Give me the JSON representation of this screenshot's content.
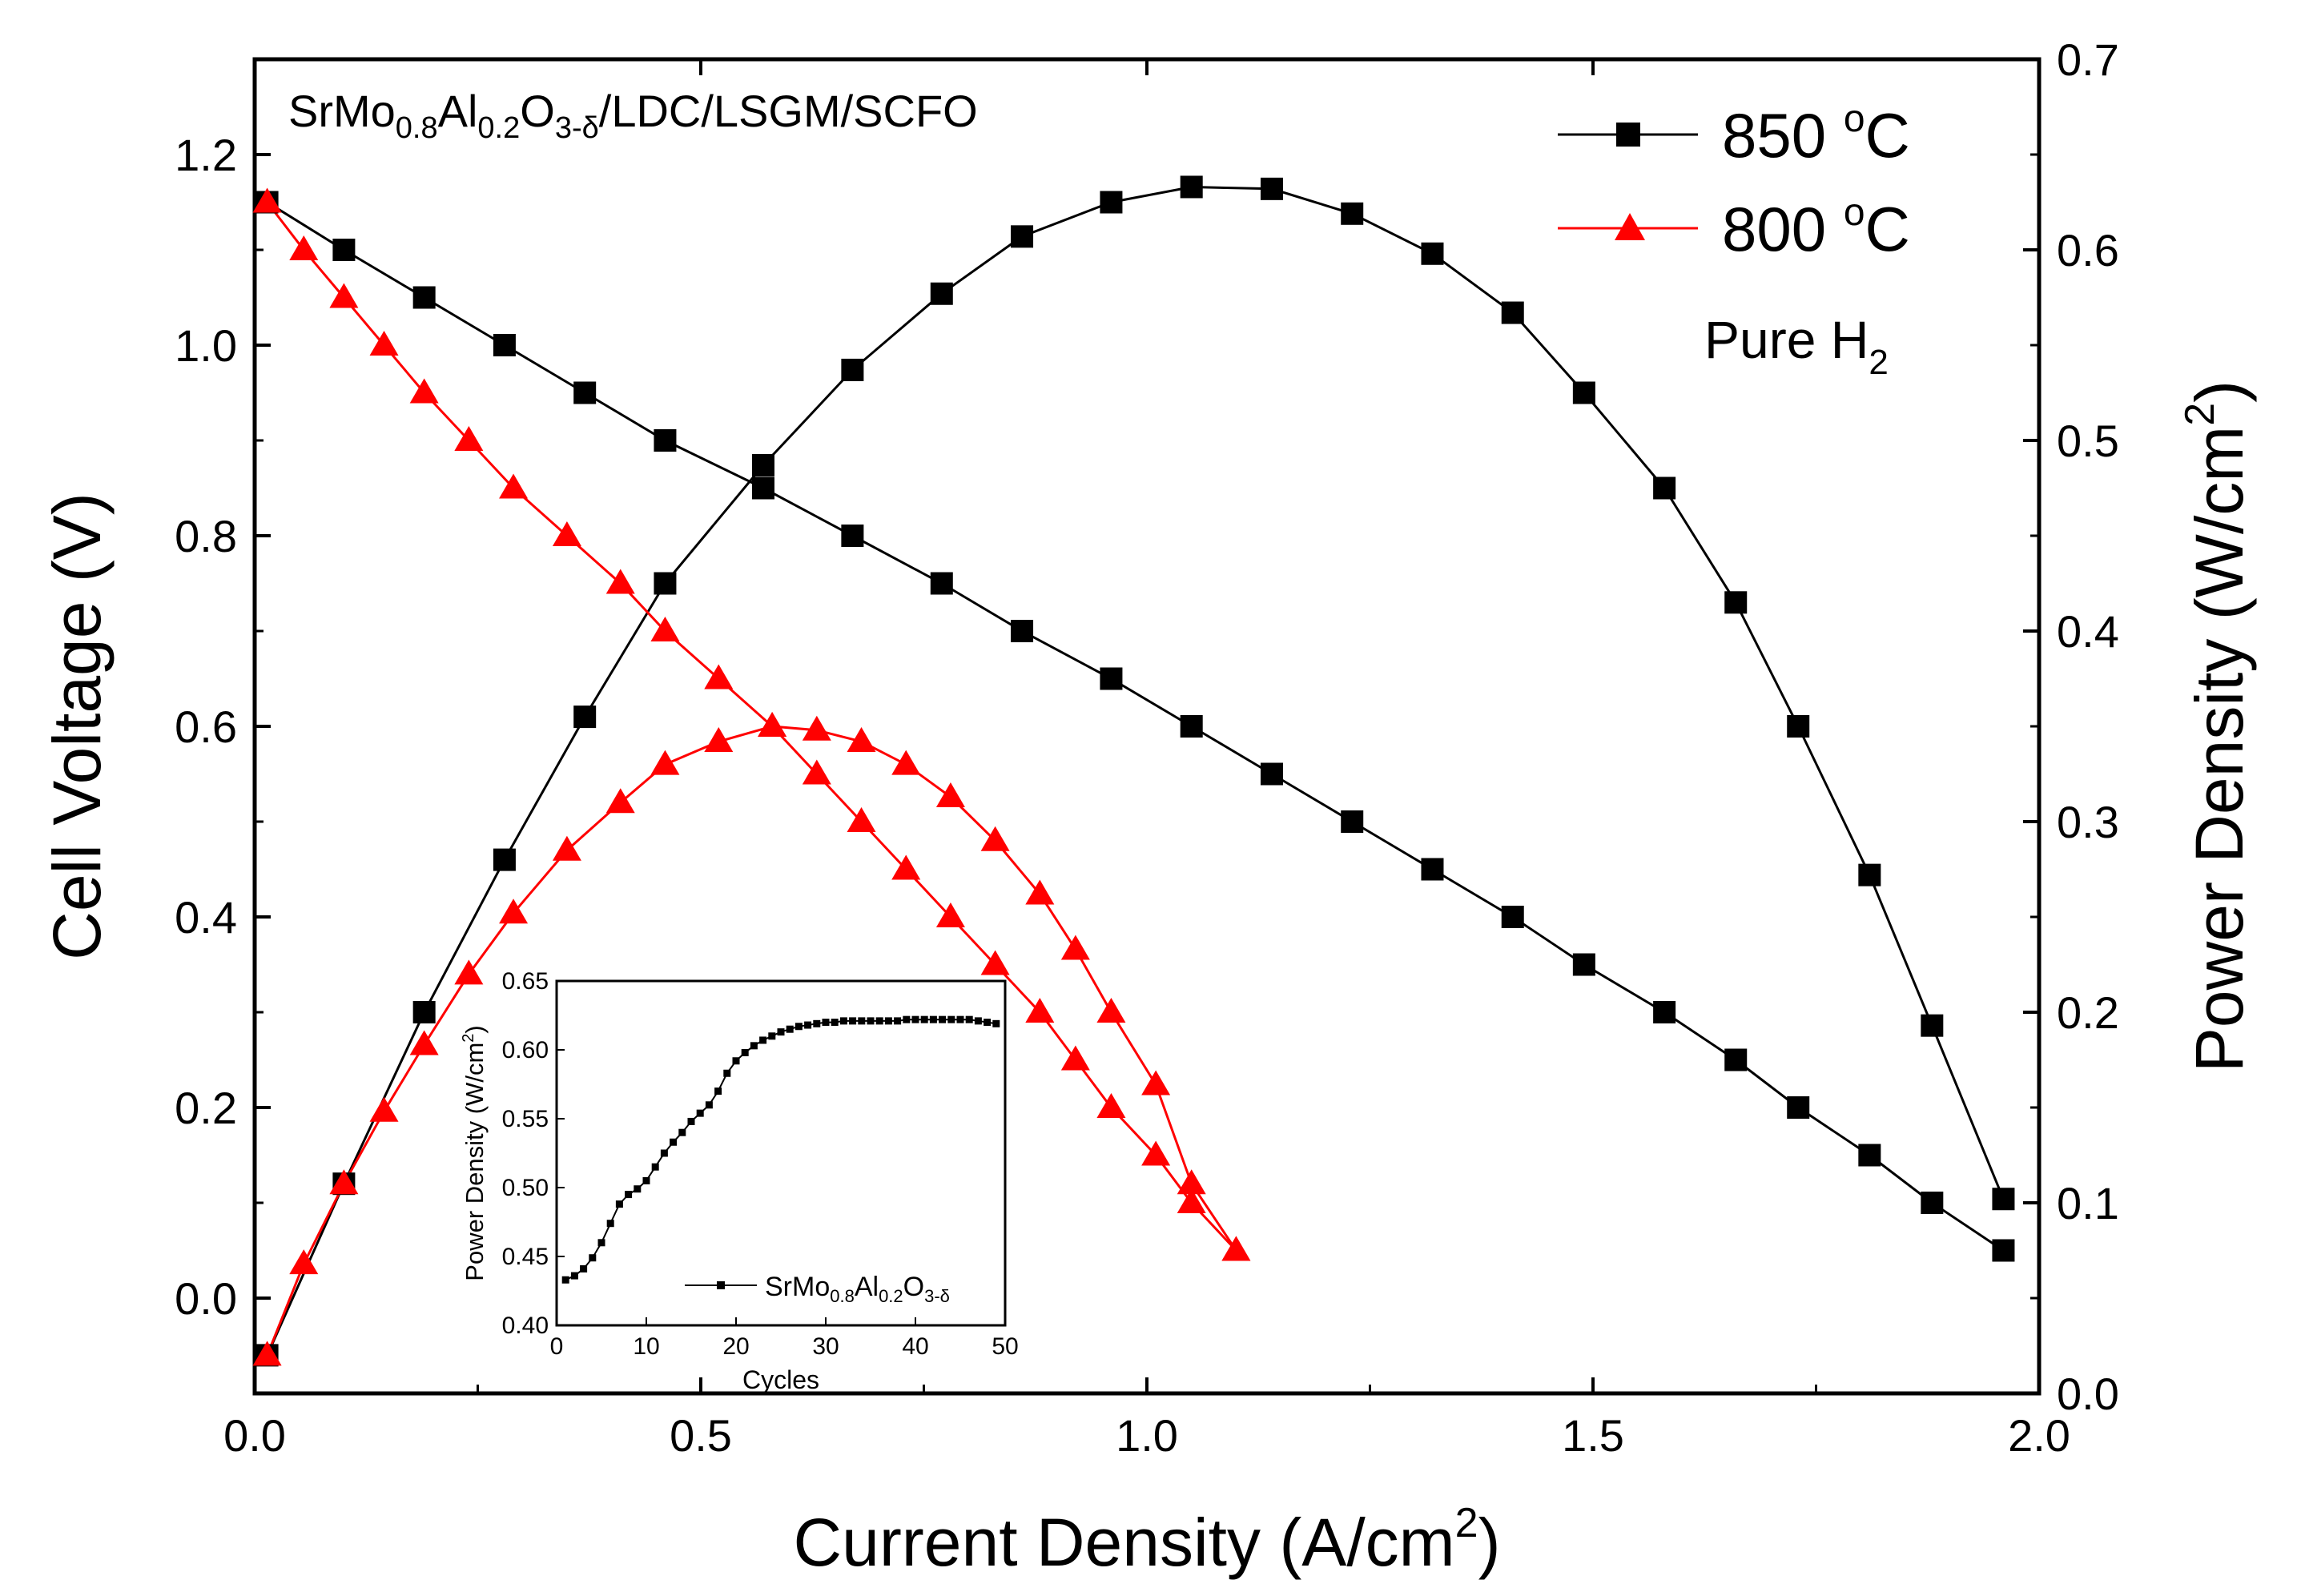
{
  "colors": {
    "series_850": "#000000",
    "series_800": "#ff0000",
    "marker_800": "#ff0000",
    "axis": "#000000"
  },
  "annotations": {
    "title_parts": [
      "SrMo",
      "0.8",
      "Al",
      "0.2",
      "O",
      "3-δ",
      "/LDC/LSGM/SCFO"
    ],
    "fuel_parts": [
      "Pure H",
      "2"
    ]
  },
  "legend": [
    {
      "base": "850 ",
      "sup": "o",
      "tail": "C",
      "marker": "square",
      "color": "#000000"
    },
    {
      "base": "800 ",
      "sup": "o",
      "tail": "C",
      "marker": "triangle",
      "color": "#ff0000"
    }
  ],
  "chart_data": [
    {
      "type": "line",
      "xlabel_parts": [
        "Current Density (A/cm",
        "2",
        ")"
      ],
      "ylabel": "Cell Voltage (V)",
      "y2label_parts": [
        "Power Density (W/cm",
        "2",
        ")"
      ],
      "xlim": [
        0.0,
        2.0
      ],
      "ylim": [
        -0.1,
        1.3
      ],
      "y2lim": [
        0.0,
        0.7
      ],
      "xticks": [
        "0.0",
        "0.5",
        "1.0",
        "1.5",
        "2.0"
      ],
      "yticks": [
        "0.0",
        "0.2",
        "0.4",
        "0.6",
        "0.8",
        "1.0",
        "1.2"
      ],
      "y2ticks": [
        "0.0",
        "0.1",
        "0.2",
        "0.3",
        "0.4",
        "0.5",
        "0.6",
        "0.7"
      ],
      "series": [
        {
          "name": "850 °C voltage",
          "axis": "left",
          "marker": "square",
          "color": "#000000",
          "x": [
            0.014,
            0.1,
            0.19,
            0.28,
            0.37,
            0.46,
            0.57,
            0.67,
            0.77,
            0.86,
            0.96,
            1.05,
            1.14,
            1.23,
            1.32,
            1.41,
            1.49,
            1.58,
            1.66,
            1.73,
            1.81,
            1.88,
            1.96
          ],
          "y": [
            1.15,
            1.1,
            1.05,
            1.0,
            0.95,
            0.9,
            0.85,
            0.8,
            0.75,
            0.7,
            0.65,
            0.6,
            0.55,
            0.5,
            0.45,
            0.4,
            0.35,
            0.3,
            0.25,
            0.2,
            0.15,
            0.1,
            0.05
          ]
        },
        {
          "name": "850 °C power",
          "axis": "right",
          "marker": "square",
          "color": "#000000",
          "x": [
            0.014,
            0.1,
            0.19,
            0.28,
            0.37,
            0.46,
            0.57,
            0.67,
            0.77,
            0.86,
            0.96,
            1.05,
            1.14,
            1.23,
            1.32,
            1.41,
            1.49,
            1.58,
            1.66,
            1.73,
            1.81,
            1.88,
            1.96
          ],
          "y": [
            0.02,
            0.11,
            0.2,
            0.28,
            0.355,
            0.425,
            0.487,
            0.537,
            0.577,
            0.607,
            0.625,
            0.633,
            0.632,
            0.619,
            0.598,
            0.567,
            0.525,
            0.475,
            0.415,
            0.35,
            0.272,
            0.193,
            0.102
          ]
        },
        {
          "name": "800 °C voltage",
          "axis": "left",
          "marker": "triangle",
          "color": "#ff0000",
          "x": [
            0.014,
            0.055,
            0.1,
            0.145,
            0.19,
            0.24,
            0.29,
            0.35,
            0.41,
            0.46,
            0.52,
            0.58,
            0.63,
            0.68,
            0.73,
            0.78,
            0.83,
            0.88,
            0.92,
            0.96,
            1.01,
            1.05,
            1.1
          ],
          "y": [
            1.15,
            1.1,
            1.05,
            1.0,
            0.95,
            0.9,
            0.85,
            0.8,
            0.75,
            0.7,
            0.65,
            0.6,
            0.55,
            0.5,
            0.45,
            0.4,
            0.35,
            0.3,
            0.25,
            0.2,
            0.15,
            0.1,
            0.05
          ]
        },
        {
          "name": "800 °C power",
          "axis": "right",
          "marker": "triangle",
          "color": "#ff0000",
          "x": [
            0.014,
            0.055,
            0.1,
            0.145,
            0.19,
            0.24,
            0.29,
            0.35,
            0.41,
            0.46,
            0.52,
            0.58,
            0.63,
            0.68,
            0.73,
            0.78,
            0.83,
            0.88,
            0.92,
            0.96,
            1.01,
            1.05,
            1.1
          ],
          "y": [
            0.02,
            0.068,
            0.11,
            0.148,
            0.183,
            0.22,
            0.252,
            0.285,
            0.31,
            0.33,
            0.342,
            0.35,
            0.348,
            0.342,
            0.33,
            0.313,
            0.29,
            0.262,
            0.233,
            0.2,
            0.162,
            0.11,
            0.075
          ]
        }
      ]
    },
    {
      "type": "line",
      "name": "inset",
      "xlabel": "Cycles",
      "ylabel_parts": [
        "Power Density (W/cm",
        "2",
        ")"
      ],
      "xlim": [
        0,
        50
      ],
      "ylim": [
        0.4,
        0.65
      ],
      "xticks": [
        "0",
        "10",
        "20",
        "30",
        "40",
        "50"
      ],
      "yticks": [
        "0.40",
        "0.45",
        "0.50",
        "0.55",
        "0.60",
        "0.65"
      ],
      "legend_parts": [
        "SrMo",
        "0.8",
        "Al",
        "0.2",
        "O",
        "3-δ"
      ],
      "series": [
        {
          "name": "SrMo0.8Al0.2O3-δ",
          "x": [
            1,
            2,
            3,
            4,
            5,
            6,
            7,
            8,
            9,
            10,
            11,
            12,
            13,
            14,
            15,
            16,
            17,
            18,
            19,
            20,
            21,
            22,
            23,
            24,
            25,
            26,
            27,
            28,
            29,
            30,
            31,
            32,
            33,
            34,
            35,
            36,
            37,
            38,
            39,
            40,
            41,
            42,
            43,
            44,
            45,
            46,
            47,
            48,
            49
          ],
          "y": [
            0.433,
            0.436,
            0.441,
            0.449,
            0.46,
            0.474,
            0.488,
            0.495,
            0.499,
            0.505,
            0.515,
            0.525,
            0.533,
            0.54,
            0.548,
            0.554,
            0.56,
            0.57,
            0.583,
            0.592,
            0.598,
            0.603,
            0.607,
            0.61,
            0.613,
            0.615,
            0.617,
            0.618,
            0.619,
            0.62,
            0.62,
            0.621,
            0.621,
            0.621,
            0.621,
            0.621,
            0.621,
            0.621,
            0.622,
            0.622,
            0.622,
            0.622,
            0.622,
            0.622,
            0.622,
            0.622,
            0.621,
            0.62,
            0.619
          ]
        }
      ]
    }
  ]
}
